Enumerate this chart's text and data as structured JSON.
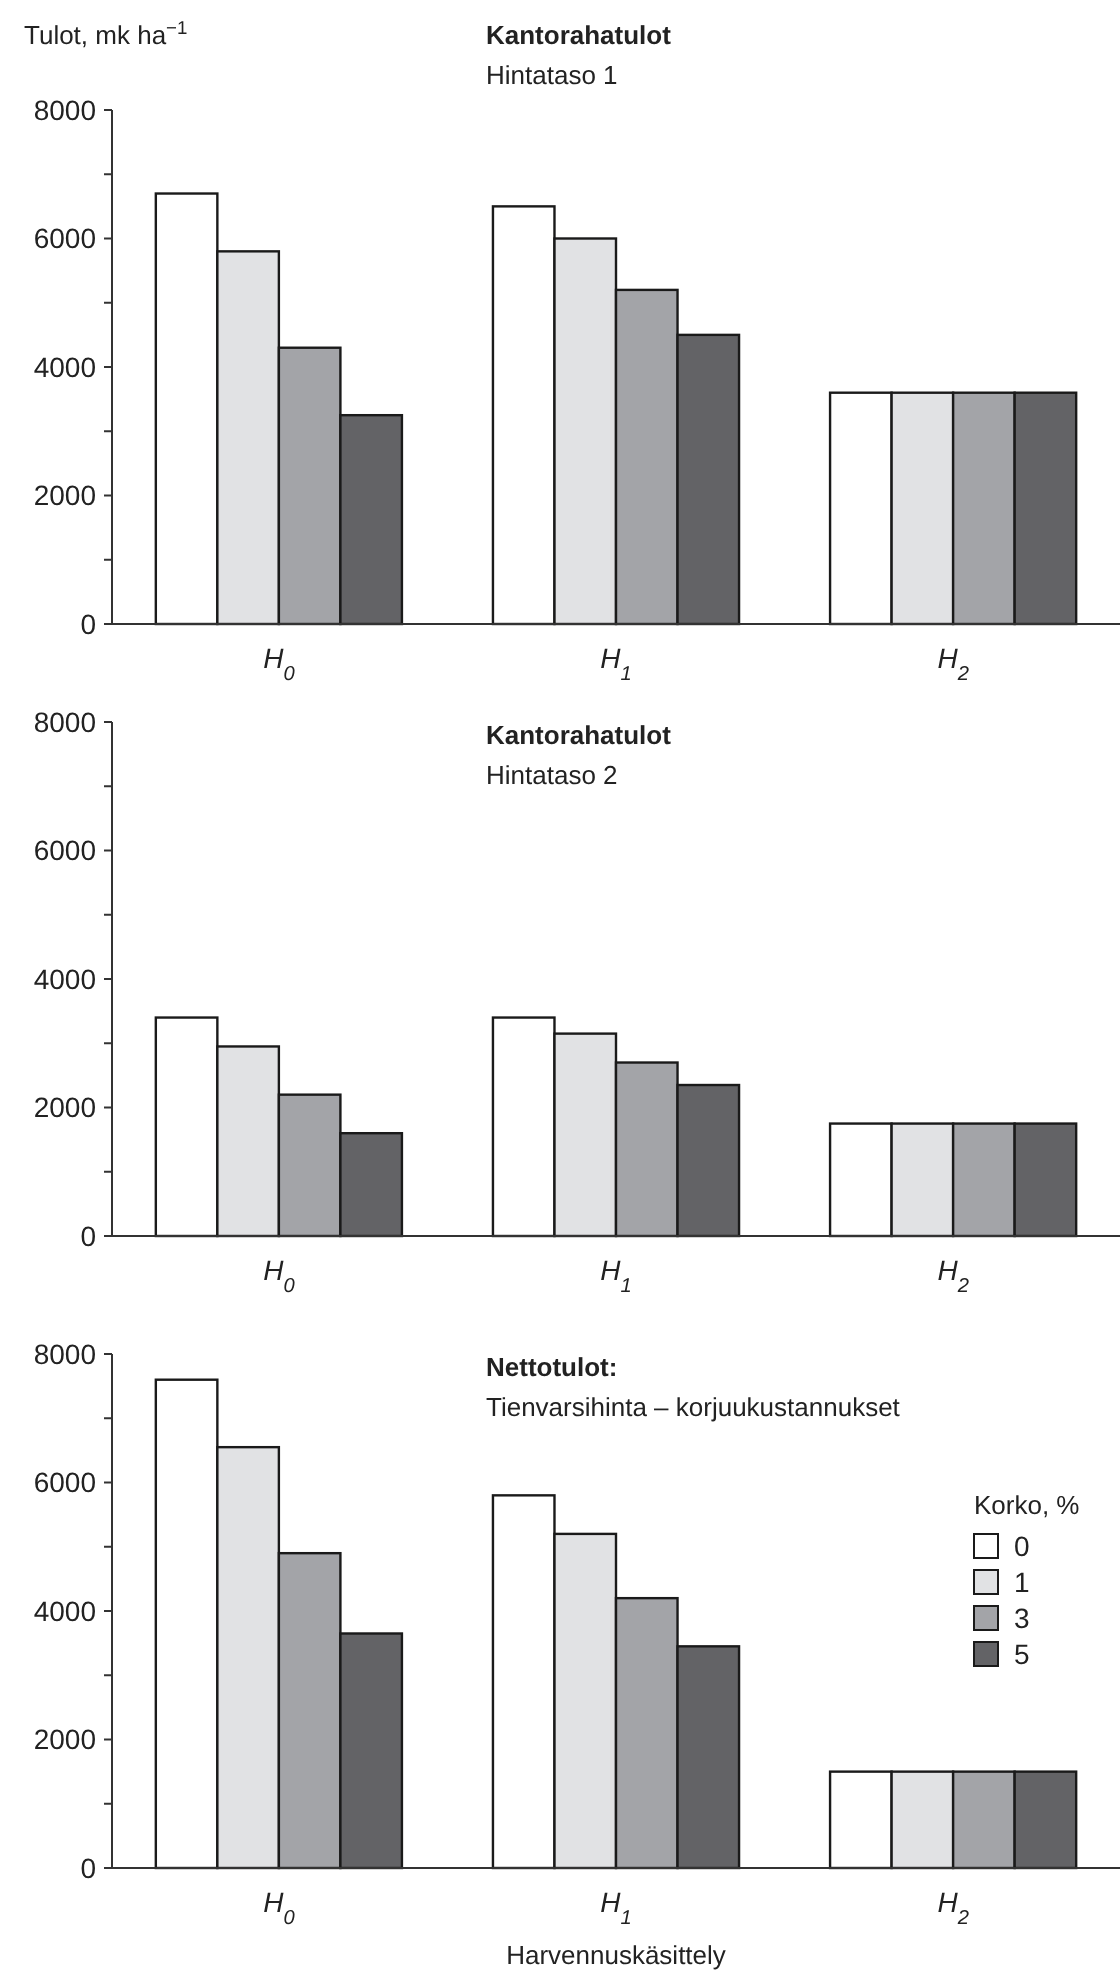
{
  "chart_data": [
    {
      "type": "bar",
      "title": "Kantorahatulot",
      "subtitle": "Hintataso 1",
      "ylabel": "Tulot, mk ha$^{−1}$",
      "categories": [
        "H$_{0}$",
        "H$_{1}$",
        "H$_{2}$"
      ],
      "series": [
        {
          "color": "#ffffff",
          "values": [
            6700,
            6500,
            3600
          ]
        },
        {
          "color": "#e1e2e4",
          "values": [
            5800,
            6000,
            3600
          ]
        },
        {
          "color": "#a3a4a8",
          "values": [
            4300,
            5200,
            3600
          ]
        },
        {
          "color": "#636366",
          "values": [
            3250,
            4500,
            3600
          ]
        }
      ],
      "ylim": [
        0,
        8000
      ],
      "yticks": [
        0,
        {
          "value": 1000,
          "label": null
        },
        2000,
        {
          "value": 3000,
          "label": null
        },
        4000,
        {
          "value": 5000,
          "label": null
        },
        6000,
        {
          "value": 7000,
          "label": null
        },
        8000
      ],
      "legend": false
    },
    {
      "type": "bar",
      "title": "Kantorahatulot",
      "subtitle": "Hintataso 2",
      "categories": [
        "H$_{0}$",
        "H$_{1}$",
        "H$_{2}$"
      ],
      "series": [
        {
          "color": "#ffffff",
          "values": [
            3400,
            3400,
            1750
          ]
        },
        {
          "color": "#e1e2e4",
          "values": [
            2950,
            3150,
            1750
          ]
        },
        {
          "color": "#a3a4a8",
          "values": [
            2200,
            2700,
            1750
          ]
        },
        {
          "color": "#636366",
          "values": [
            1600,
            2350,
            1750
          ]
        }
      ],
      "ylim": [
        0,
        8000
      ],
      "yticks": [
        0,
        {
          "value": 1000,
          "label": null
        },
        2000,
        {
          "value": 3000,
          "label": null
        },
        4000,
        {
          "value": 5000,
          "label": null
        },
        6000,
        {
          "value": 7000,
          "label": null
        },
        8000
      ],
      "legend": false
    },
    {
      "type": "bar",
      "title": "Nettotulot:",
      "subtitle": "Tienvarsihinta – korjuukustannukset",
      "xlabel": "Harvennuskäsittely",
      "legend_title": "Korko, %",
      "categories": [
        "H$_{0}$",
        "H$_{1}$",
        "H$_{2}$"
      ],
      "series": [
        {
          "name": "0",
          "color": "#ffffff",
          "values": [
            7600,
            5800,
            1500
          ]
        },
        {
          "name": "1",
          "color": "#e1e2e4",
          "values": [
            6550,
            5200,
            1500
          ]
        },
        {
          "name": "3",
          "color": "#a3a4a8",
          "values": [
            4900,
            4200,
            1500
          ]
        },
        {
          "name": "5",
          "color": "#636366",
          "values": [
            3650,
            3450,
            1500
          ]
        }
      ],
      "ylim": [
        0,
        8000
      ],
      "yticks": [
        0,
        {
          "value": 1000,
          "label": null
        },
        2000,
        {
          "value": 3000,
          "label": null
        },
        4000,
        {
          "value": 5000,
          "label": null
        },
        6000,
        {
          "value": 7000,
          "label": null
        },
        8000
      ],
      "legend": "right"
    }
  ]
}
